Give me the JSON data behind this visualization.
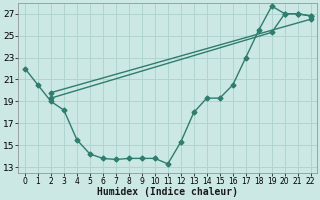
{
  "xlabel": "Humidex (Indice chaleur)",
  "bg_color": "#cce8e4",
  "grid_color": "#b0d4d0",
  "line_color": "#2e7d6e",
  "xlim": [
    -0.5,
    22.5
  ],
  "ylim": [
    12.5,
    28.0
  ],
  "yticks": [
    13,
    15,
    17,
    19,
    21,
    23,
    25,
    27
  ],
  "xticks": [
    0,
    1,
    2,
    3,
    4,
    5,
    6,
    7,
    8,
    9,
    10,
    11,
    12,
    13,
    14,
    15,
    16,
    17,
    18,
    19,
    20,
    21,
    22
  ],
  "line1_x": [
    0,
    1,
    2,
    3,
    4,
    5,
    6,
    7,
    8,
    9,
    10,
    11,
    12,
    13,
    14,
    15,
    16,
    17,
    18,
    19,
    20,
    21,
    22
  ],
  "line1_y": [
    22.0,
    20.5,
    19.0,
    18.2,
    15.5,
    14.2,
    13.8,
    13.7,
    13.8,
    13.8,
    13.8,
    13.3,
    15.3,
    18.0,
    19.3,
    19.3,
    20.5,
    23.0,
    25.5,
    27.7,
    27.0,
    27.0,
    26.8
  ],
  "line2_x": [
    2,
    19,
    20,
    21,
    22
  ],
  "line2_y": [
    19.3,
    25.3,
    27.0,
    27.0,
    26.8
  ],
  "line3_x": [
    2,
    22
  ],
  "line3_y": [
    19.8,
    26.5
  ]
}
